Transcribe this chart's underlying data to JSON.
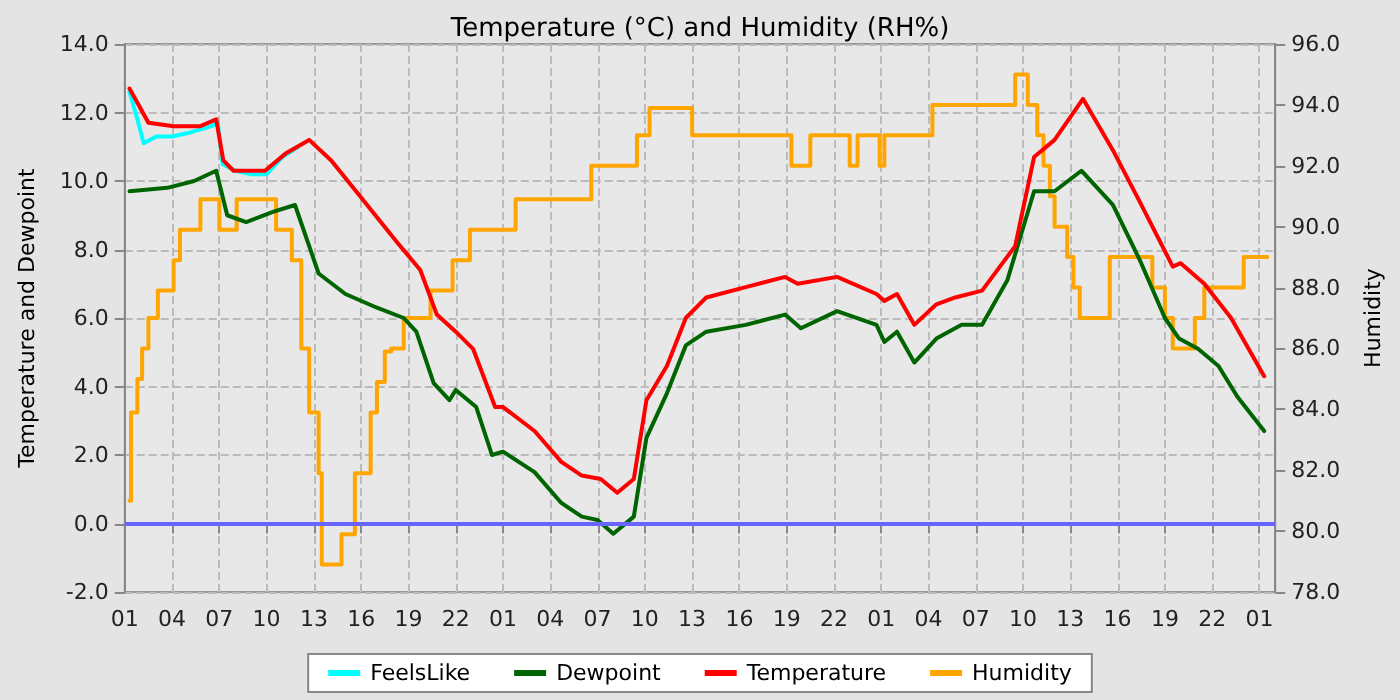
{
  "chart_data": {
    "type": "line",
    "title": "Temperature (°C) and Humidity (RH%)",
    "ylabel": "Temperature and Dewpoint",
    "y2label": "Humidity",
    "xlim": [
      "--01-01T01:00",
      "--01-04T02:00"
    ],
    "xticks": [
      {
        "value": "--01-01T01:00",
        "label": "01"
      },
      {
        "value": "--01-01T04:00",
        "label": "04"
      },
      {
        "value": "--01-01T07:00",
        "label": "07"
      },
      {
        "value": "--01-01T10:00",
        "label": "10"
      },
      {
        "value": "--01-01T13:00",
        "label": "13"
      },
      {
        "value": "--01-01T16:00",
        "label": "16"
      },
      {
        "value": "--01-01T19:00",
        "label": "19"
      },
      {
        "value": "--01-01T22:00",
        "label": "22"
      },
      {
        "value": "--01-02T01:00",
        "label": "01"
      },
      {
        "value": "--01-02T04:00",
        "label": "04"
      },
      {
        "value": "--01-02T07:00",
        "label": "07"
      },
      {
        "value": "--01-02T10:00",
        "label": "10"
      },
      {
        "value": "--01-02T13:00",
        "label": "13"
      },
      {
        "value": "--01-02T16:00",
        "label": "16"
      },
      {
        "value": "--01-02T19:00",
        "label": "19"
      },
      {
        "value": "--01-02T22:00",
        "label": "22"
      },
      {
        "value": "--01-03T01:00",
        "label": "01"
      },
      {
        "value": "--01-03T04:00",
        "label": "04"
      },
      {
        "value": "--01-03T07:00",
        "label": "07"
      },
      {
        "value": "--01-03T10:00",
        "label": "10"
      },
      {
        "value": "--01-03T13:00",
        "label": "13"
      },
      {
        "value": "--01-03T16:00",
        "label": "16"
      },
      {
        "value": "--01-03T19:00",
        "label": "19"
      },
      {
        "value": "--01-03T22:00",
        "label": "22"
      },
      {
        "value": "--01-04T01:00",
        "label": "01"
      }
    ],
    "ylim": [
      -2,
      14
    ],
    "yticks": [
      {
        "value": -2,
        "label": "-2.0"
      },
      {
        "value": 0,
        "label": "0.0"
      },
      {
        "value": 2,
        "label": "2.0"
      },
      {
        "value": 4,
        "label": "4.0"
      },
      {
        "value": 6,
        "label": "6.0"
      },
      {
        "value": 8,
        "label": "8.0"
      },
      {
        "value": 10,
        "label": "10.0"
      },
      {
        "value": 12,
        "label": "12.0"
      },
      {
        "value": 14,
        "label": "14.0"
      }
    ],
    "y2lim": [
      78,
      96
    ],
    "y2ticks": [
      {
        "value": 78,
        "label": "78.0"
      },
      {
        "value": 80,
        "label": "80.0"
      },
      {
        "value": 82,
        "label": "82.0"
      },
      {
        "value": 84,
        "label": "84.0"
      },
      {
        "value": 86,
        "label": "86.0"
      },
      {
        "value": 88,
        "label": "88.0"
      },
      {
        "value": 90,
        "label": "90.0"
      },
      {
        "value": 92,
        "label": "92.0"
      },
      {
        "value": 94,
        "label": "94.0"
      },
      {
        "value": 96,
        "label": "96.0"
      }
    ],
    "grid": true,
    "legend": "bottom",
    "marker": "none",
    "line_style": "solid",
    "ref_lines": [
      {
        "axis": "y",
        "value": 0,
        "color": "#6666ff"
      }
    ],
    "series": [
      {
        "name": "FeelsLike",
        "color": "#00ffff",
        "x": [
          "--01-01T01:18",
          "--01-01T01:48",
          "--01-01T02:12",
          "--01-01T03:00",
          "--01-01T04:00",
          "--01-01T05:00",
          "--01-01T06:30",
          "--01-01T06:54",
          "--01-01T07:12",
          "--01-01T08:00",
          "--01-01T09:00",
          "--01-01T10:00",
          "--01-01T11:00",
          "--01-01T12:00"
        ],
        "values": [
          12.6,
          11.8,
          11.1,
          11.3,
          11.3,
          11.4,
          11.6,
          11.7,
          10.5,
          10.3,
          10.2,
          10.2,
          10.7,
          11.0
        ]
      },
      {
        "name": "Dewpoint",
        "color": "#006400",
        "x": [
          "--01-01T01:18",
          "--01-01T03:42",
          "--01-01T05:24",
          "--01-01T06:48",
          "--01-01T07:30",
          "--01-01T08:42",
          "--01-01T10:24",
          "--01-01T11:48",
          "--01-01T13:18",
          "--01-01T15:00",
          "--01-01T17:00",
          "--01-01T18:42",
          "--01-01T19:30",
          "--01-01T20:36",
          "--01-01T21:36",
          "--01-01T22:00",
          "--01-01T23:18",
          "--01-02T00:18",
          "--01-02T01:00",
          "--01-02T03:00",
          "--01-02T04:42",
          "--01-02T06:00",
          "--01-02T07:00",
          "--01-02T08:00",
          "--01-02T09:18",
          "--01-02T10:06",
          "--01-02T11:24",
          "--01-02T12:36",
          "--01-02T13:54",
          "--01-02T16:24",
          "--01-02T18:54",
          "--01-02T19:54",
          "--01-02T22:12",
          "--01-03T00:42",
          "--01-03T01:12",
          "--01-03T02:00",
          "--01-03T03:06",
          "--01-03T04:30",
          "--01-03T06:06",
          "--01-03T07:24",
          "--01-03T09:00",
          "--01-03T10:42",
          "--01-03T12:00",
          "--01-03T13:42",
          "--01-03T15:42",
          "--01-03T17:24",
          "--01-03T19:00",
          "--01-03T19:54",
          "--01-03T21:06",
          "--01-03T22:24",
          "--01-03T23:36",
          "--01-04T01:18"
        ],
        "values": [
          9.7,
          9.8,
          10.0,
          10.3,
          9.0,
          8.8,
          9.1,
          9.3,
          7.3,
          6.7,
          6.3,
          6.0,
          5.6,
          4.1,
          3.6,
          3.9,
          3.4,
          2.0,
          2.1,
          1.5,
          0.6,
          0.2,
          0.1,
          -0.3,
          0.2,
          2.5,
          3.8,
          5.2,
          5.6,
          5.8,
          6.1,
          5.7,
          6.2,
          5.8,
          5.3,
          5.6,
          4.7,
          5.4,
          5.8,
          5.8,
          7.1,
          9.7,
          9.7,
          10.3,
          9.3,
          7.7,
          6.0,
          5.4,
          5.1,
          4.6,
          3.7,
          2.7
        ]
      },
      {
        "name": "Temperature",
        "color": "#ff0000",
        "x": [
          "--01-01T01:18",
          "--01-01T02:30",
          "--01-01T04:06",
          "--01-01T05:48",
          "--01-01T06:48",
          "--01-01T07:15",
          "--01-01T07:54",
          "--01-01T09:54",
          "--01-01T11:12",
          "--01-01T12:42",
          "--01-01T14:06",
          "--01-01T16:12",
          "--01-01T18:18",
          "--01-01T19:45",
          "--01-01T20:48",
          "--01-01T22:00",
          "--01-01T23:06",
          "--01-02T00:30",
          "--01-02T01:00",
          "--01-02T03:00",
          "--01-02T04:42",
          "--01-02T06:00",
          "--01-02T07:12",
          "--01-02T08:15",
          "--01-02T09:18",
          "--01-02T10:06",
          "--01-02T11:24",
          "--01-02T12:36",
          "--01-02T13:54",
          "--01-02T16:24",
          "--01-02T18:54",
          "--01-02T19:42",
          "--01-02T22:12",
          "--01-03T00:42",
          "--01-03T01:12",
          "--01-03T02:00",
          "--01-03T03:06",
          "--01-03T04:30",
          "--01-03T05:42",
          "--01-03T07:24",
          "--01-03T09:30",
          "--01-03T10:42",
          "--01-03T12:00",
          "--01-03T13:48",
          "--01-03T15:42",
          "--01-03T17:24",
          "--01-03T19:30",
          "--01-03T20:00",
          "--01-03T21:30",
          "--01-03T23:12",
          "--01-04T01:18"
        ],
        "values": [
          12.7,
          11.7,
          11.6,
          11.6,
          11.8,
          10.6,
          10.3,
          10.3,
          10.8,
          11.2,
          10.6,
          9.4,
          8.2,
          7.4,
          6.1,
          5.6,
          5.1,
          3.4,
          3.4,
          2.7,
          1.8,
          1.4,
          1.3,
          0.9,
          1.3,
          3.6,
          4.6,
          6.0,
          6.6,
          6.9,
          7.2,
          7.0,
          7.2,
          6.7,
          6.5,
          6.7,
          5.8,
          6.4,
          6.6,
          6.8,
          8.1,
          10.7,
          11.2,
          12.4,
          10.9,
          9.4,
          7.5,
          7.6,
          7.0,
          6.0,
          4.3
        ]
      },
      {
        "name": "Humidity",
        "color": "#ffa500",
        "type": "step",
        "axis": "y2",
        "x": [
          "--01-01T01:18",
          "--01-01T01:24",
          "--01-01T01:48",
          "--01-01T02:06",
          "--01-01T02:30",
          "--01-01T03:06",
          "--01-01T04:06",
          "--01-01T04:30",
          "--01-01T05:48",
          "--01-01T07:00",
          "--01-01T08:06",
          "--01-01T10:36",
          "--01-01T11:36",
          "--01-01T12:12",
          "--01-01T12:42",
          "--01-01T13:18",
          "--01-01T13:30",
          "--01-01T14:45",
          "--01-01T15:36",
          "--01-01T16:36",
          "--01-01T17:00",
          "--01-01T17:30",
          "--01-01T17:54",
          "--01-01T18:42",
          "--01-01T20:24",
          "--01-01T21:48",
          "--01-01T22:54",
          "--01-02T01:48",
          "--01-02T06:36",
          "--01-02T09:30",
          "--01-02T10:18",
          "--01-02T13:00",
          "--01-02T19:18",
          "--01-02T20:30",
          "--01-02T23:00",
          "--01-02T23:30",
          "--01-03T00:54",
          "--01-03T01:12",
          "--01-03T04:15",
          "--01-03T09:30",
          "--01-03T10:18",
          "--01-03T10:54",
          "--01-03T11:18",
          "--01-03T11:42",
          "--01-03T12:00",
          "--01-03T12:48",
          "--01-03T13:12",
          "--01-03T13:36",
          "--01-03T15:30",
          "--01-03T18:12",
          "--01-03T19:00",
          "--01-03T19:30",
          "--01-03T20:54",
          "--01-03T21:30",
          "--01-04T00:00",
          "--01-04T01:30"
        ],
        "values": [
          81.0,
          83.9,
          85.0,
          86.0,
          87.0,
          87.9,
          88.9,
          89.9,
          90.9,
          89.9,
          90.9,
          89.9,
          88.9,
          86.0,
          83.9,
          81.9,
          78.9,
          79.9,
          81.9,
          83.9,
          84.9,
          85.9,
          86.0,
          87.0,
          87.9,
          88.9,
          89.9,
          90.9,
          92.0,
          93.0,
          93.9,
          93.0,
          92.0,
          93.0,
          92.0,
          93.0,
          92.0,
          93.0,
          94.0,
          95.0,
          94.0,
          93.0,
          92.0,
          91.0,
          90.0,
          89.0,
          88.0,
          87.0,
          89.0,
          88.0,
          87.0,
          86.0,
          87.0,
          88.0,
          89.0,
          89.0
        ]
      }
    ]
  }
}
